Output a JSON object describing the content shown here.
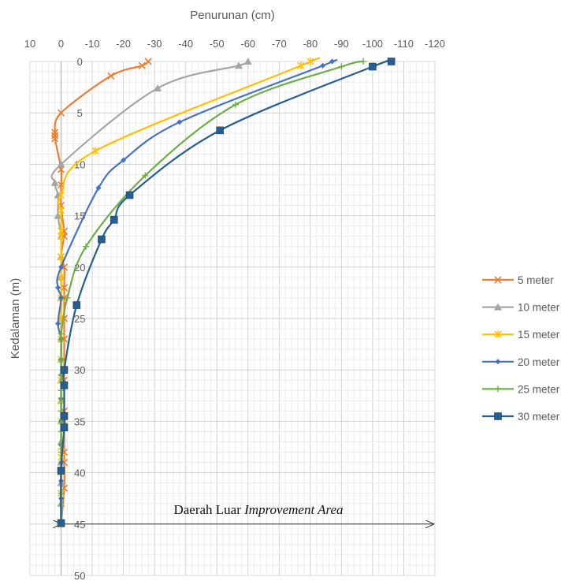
{
  "chart_data": {
    "type": "scatter",
    "title": "",
    "xlabel": "Penurunan (cm)",
    "ylabel": "Kedalaman (m)",
    "x_reversed": true,
    "y_reversed": true,
    "xlim": [
      10,
      -120
    ],
    "ylim": [
      0,
      50
    ],
    "x_ticks": [
      "10",
      "0",
      "-10",
      "-20",
      "-30",
      "-40",
      "-50",
      "-60",
      "-70",
      "-80",
      "-90",
      "-100",
      "-110",
      "-120"
    ],
    "y_ticks": [
      "0",
      "5",
      "10",
      "15",
      "20",
      "25",
      "30",
      "35",
      "40",
      "45",
      "50"
    ],
    "grid": true,
    "legend_position": "right",
    "annotation": {
      "prefix": "Daerah Luar ",
      "italic": "Improvement Area",
      "y": 45
    },
    "series": [
      {
        "name": "5 meter",
        "color": "#ED7D31",
        "marker": "x",
        "points": [
          [
            -28,
            0
          ],
          [
            -26,
            0.4
          ],
          [
            -16,
            1.4
          ],
          [
            0,
            5
          ],
          [
            2,
            6.9
          ],
          [
            2,
            7.2
          ],
          [
            2,
            7.5
          ],
          [
            0,
            10.5
          ],
          [
            0,
            12
          ],
          [
            0,
            14
          ],
          [
            -1,
            16.5
          ],
          [
            -1,
            17
          ],
          [
            0,
            19
          ],
          [
            -1,
            20
          ],
          [
            -1,
            22
          ],
          [
            -1,
            23
          ],
          [
            -1,
            25
          ],
          [
            -1,
            27
          ],
          [
            -1,
            30
          ],
          [
            -1,
            31
          ],
          [
            -1,
            34
          ],
          [
            -1,
            35
          ],
          [
            -1,
            38
          ],
          [
            -1,
            39
          ],
          [
            -1,
            41.5
          ],
          [
            0,
            45
          ]
        ]
      },
      {
        "name": "10 meter",
        "color": "#A5A5A5",
        "marker": "triangle",
        "points": [
          [
            -60,
            0
          ],
          [
            -57,
            0.4
          ],
          [
            -31,
            2.6
          ],
          [
            0,
            10
          ],
          [
            2,
            11.8
          ],
          [
            1,
            13
          ],
          [
            1,
            15
          ],
          [
            0,
            17
          ],
          [
            0,
            19
          ],
          [
            0,
            21
          ],
          [
            0,
            23
          ],
          [
            0,
            25
          ],
          [
            0,
            27
          ],
          [
            0,
            29
          ],
          [
            0,
            31
          ],
          [
            0,
            33
          ],
          [
            0,
            35
          ],
          [
            0,
            37
          ],
          [
            0,
            39
          ],
          [
            0,
            41
          ],
          [
            0,
            43
          ],
          [
            0,
            45
          ]
        ]
      },
      {
        "name": "15 meter",
        "color": "#FFC000",
        "marker": "star",
        "points": [
          [
            -80,
            0
          ],
          [
            -77,
            0.4
          ],
          [
            -11,
            8.7
          ],
          [
            0,
            13
          ],
          [
            0,
            14.5
          ],
          [
            0,
            16.5
          ],
          [
            0,
            17
          ],
          [
            0,
            19
          ],
          [
            0,
            21
          ],
          [
            0,
            23
          ],
          [
            0,
            25
          ],
          [
            0,
            27
          ],
          [
            0,
            29
          ],
          [
            0,
            31
          ],
          [
            0,
            33
          ],
          [
            0,
            35
          ],
          [
            0,
            37.5
          ],
          [
            0,
            38.5
          ],
          [
            0,
            40
          ],
          [
            0,
            42
          ],
          [
            0,
            45
          ]
        ]
      },
      {
        "name": "20 meter",
        "color": "#4472C4",
        "marker": "diamond",
        "points": [
          [
            -87,
            0
          ],
          [
            -84,
            0.4
          ],
          [
            -38,
            5.9
          ],
          [
            -20,
            9.6
          ],
          [
            -12,
            12.3
          ],
          [
            0,
            20
          ],
          [
            1,
            22
          ],
          [
            0,
            23
          ],
          [
            1,
            25.5
          ],
          [
            0,
            27
          ],
          [
            0,
            29
          ],
          [
            0,
            30.5
          ],
          [
            0,
            32.8
          ],
          [
            0,
            35
          ],
          [
            0,
            37.3
          ],
          [
            0,
            39
          ],
          [
            0,
            40.8
          ],
          [
            0,
            42.5
          ],
          [
            0,
            45
          ]
        ]
      },
      {
        "name": "25 meter",
        "color": "#70AD47",
        "marker": "plus",
        "points": [
          [
            -97,
            0
          ],
          [
            -90,
            0.5
          ],
          [
            -56,
            4.2
          ],
          [
            -27,
            11.1
          ],
          [
            -8,
            18
          ],
          [
            -2,
            23
          ],
          [
            0,
            26.5
          ],
          [
            0,
            27
          ],
          [
            0,
            29
          ],
          [
            0,
            30.5
          ],
          [
            0,
            32
          ],
          [
            0,
            34
          ],
          [
            0,
            36
          ],
          [
            0,
            38
          ],
          [
            0,
            40
          ],
          [
            0,
            42
          ],
          [
            0,
            45
          ]
        ]
      },
      {
        "name": "30 meter",
        "color": "#255E91",
        "marker": "square",
        "points": [
          [
            -106,
            0
          ],
          [
            -100,
            0.5
          ],
          [
            -51,
            6.7
          ],
          [
            -22,
            13
          ],
          [
            -17,
            15.4
          ],
          [
            -13,
            17.3
          ],
          [
            -5,
            23.7
          ],
          [
            -1,
            30
          ],
          [
            -1,
            31.5
          ],
          [
            -1,
            34.5
          ],
          [
            -1,
            35.6
          ],
          [
            0,
            39.8
          ],
          [
            0,
            44.9
          ]
        ]
      }
    ]
  }
}
